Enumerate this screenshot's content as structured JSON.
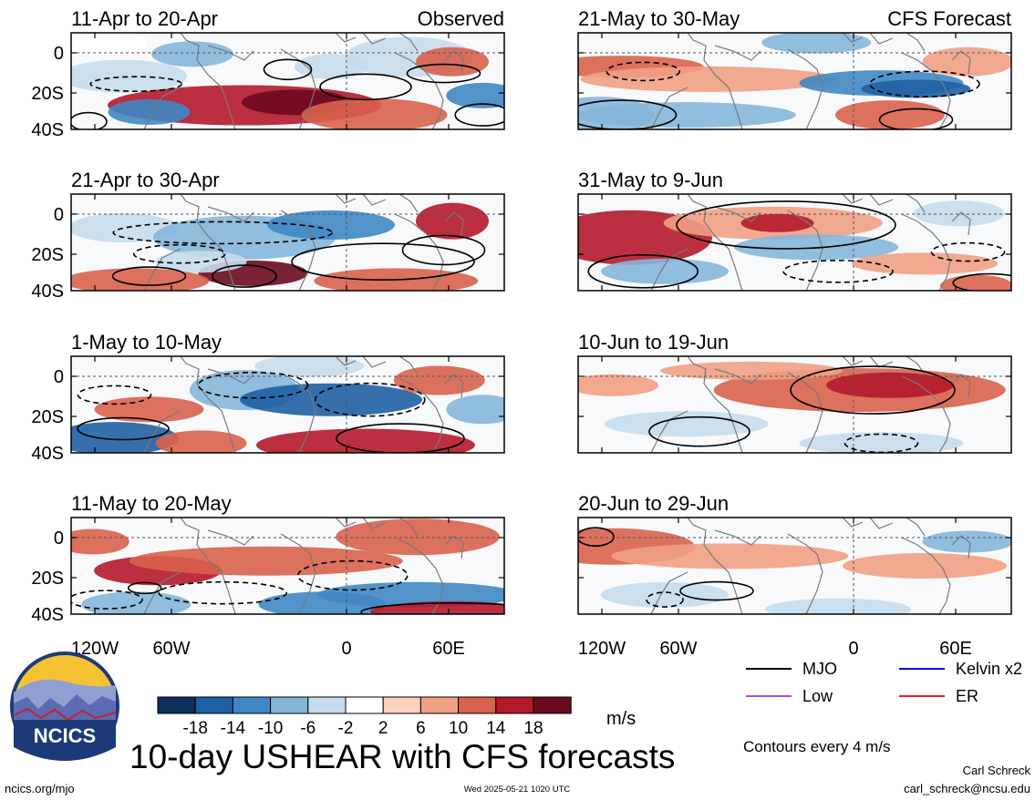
{
  "column_titles": {
    "left": "Observed",
    "right": "CFS Forecast"
  },
  "panels": [
    {
      "label": "11-Apr to 20-Apr"
    },
    {
      "label": "21-Apr to 30-Apr"
    },
    {
      "label": "1-May to 10-May"
    },
    {
      "label": "11-May to 20-May"
    },
    {
      "label": "21-May to 30-May"
    },
    {
      "label": "31-May to 9-Jun"
    },
    {
      "label": "10-Jun to 19-Jun"
    },
    {
      "label": "20-Jun to 29-Jun"
    }
  ],
  "y_ticks": [
    "0",
    "20S",
    "40S"
  ],
  "x_ticks": [
    "120W",
    "60W",
    "0",
    "60E"
  ],
  "colorbar": {
    "colors": [
      "#0d2f5a",
      "#1f5fa3",
      "#3f87c4",
      "#85b6da",
      "#c6dcec",
      "#ffffff",
      "#fad1bc",
      "#f0a084",
      "#d8624d",
      "#b4182b",
      "#6b0a1f"
    ],
    "tick_labels": [
      "-18",
      "-14",
      "-10",
      "-6",
      "-2",
      "2",
      "6",
      "10",
      "14",
      "18"
    ],
    "unit": "m/s"
  },
  "legend": [
    {
      "label": "MJO",
      "color": "#000000"
    },
    {
      "label": "Kelvin x2",
      "color": "#0000ff"
    },
    {
      "label": "Low",
      "color": "#a050e0"
    },
    {
      "label": "ER",
      "color": "#e02020"
    }
  ],
  "contour_note": "Contours every 4 m/s",
  "main_title": "10-day USHEAR with CFS forecasts",
  "logo_text": "NCICS",
  "footer": {
    "url": "ncics.org/mjo",
    "timestamp": "Wed 2025-05-21 1020 UTC",
    "author": "Carl Schreck",
    "email": "carl_schreck@ncsu.edu"
  }
}
